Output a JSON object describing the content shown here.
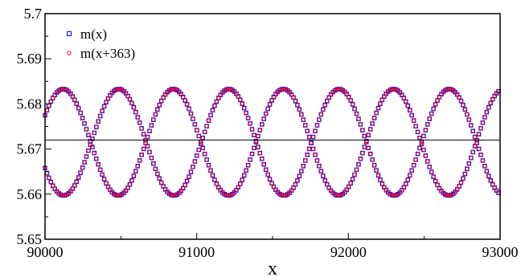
{
  "chart_data": {
    "type": "scatter",
    "title": "",
    "xlabel": "x",
    "ylabel": "",
    "xlim": [
      90000,
      93000
    ],
    "ylim": [
      5.65,
      5.7
    ],
    "x_ticks": [
      90000,
      91000,
      92000,
      93000
    ],
    "x_tick_labels": [
      "90000",
      "91000",
      "92000",
      "93000"
    ],
    "y_ticks": [
      5.65,
      5.66,
      5.67,
      5.68,
      5.69,
      5.7
    ],
    "y_tick_labels": [
      "5.65",
      "5.66",
      "5.67",
      "5.68",
      "5.69",
      "5.7"
    ],
    "grid": false,
    "legend_position": "top-left",
    "reference_line": {
      "y": 5.672,
      "color": "#000000"
    },
    "series": [
      {
        "name": "m(x)",
        "marker": "square",
        "color": "#0000ff",
        "waveform": {
          "mean": 5.6715,
          "amplitude": 0.0118,
          "period": 726,
          "x_step": 13,
          "curves": [
            {
              "id": "A",
              "phase_x_of_peak": 90120
            },
            {
              "id": "B",
              "phase_x_of_peak": 90486
            }
          ]
        }
      },
      {
        "name": "m(x+363)",
        "marker": "circle",
        "color": "#ff0000",
        "waveform": {
          "mean": 5.6715,
          "amplitude": 0.0118,
          "period": 726,
          "x_step": 13,
          "curves": [
            {
              "id": "A",
              "phase_x_of_peak": 90120
            },
            {
              "id": "B",
              "phase_x_of_peak": 90486
            }
          ]
        }
      }
    ]
  }
}
